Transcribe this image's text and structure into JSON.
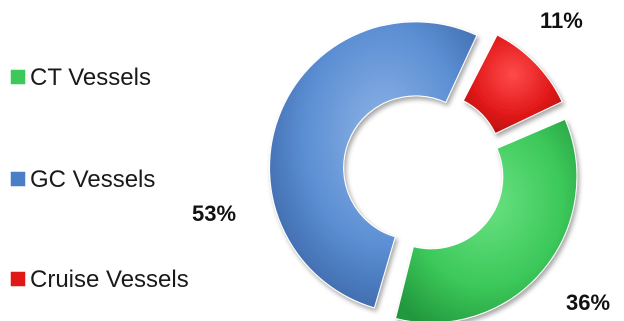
{
  "chart_data": {
    "type": "pie",
    "variant": "donut",
    "title": "",
    "legend_position": "left",
    "slices": [
      {
        "name": "CT Vessels",
        "value": 36,
        "label": "36%",
        "color": "#3cc85a"
      },
      {
        "name": "GC Vessels",
        "value": 53,
        "label": "53%",
        "color": "#4a7fc8"
      },
      {
        "name": "Cruise Vessels",
        "value": 11,
        "label": "11%",
        "color": "#e01818"
      }
    ]
  }
}
